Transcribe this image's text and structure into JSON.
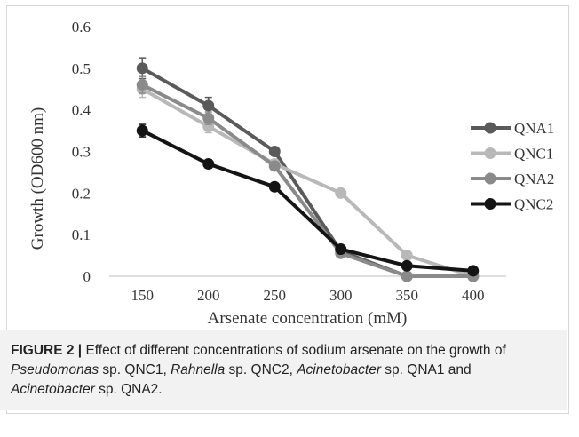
{
  "chart_data": {
    "type": "line",
    "xlabel": "Arsenate concentration (mM)",
    "ylabel": "Growth (OD600 nm)",
    "categories": [
      "150",
      "200",
      "250",
      "300",
      "350",
      "400"
    ],
    "ylim": [
      0,
      0.6
    ],
    "yticks": [
      "0",
      "0.1",
      "0.2",
      "0.3",
      "0.4",
      "0.5",
      "0.6"
    ],
    "grid": false,
    "legend_position": "right",
    "series": [
      {
        "name": "QNA1",
        "color": "#5a5a5a",
        "values": [
          0.5,
          0.41,
          0.3,
          0.06,
          0.0,
          0.0
        ],
        "errors": [
          0.025,
          0.02,
          0.01,
          0,
          0,
          0
        ]
      },
      {
        "name": "QNC1",
        "color": "#b8b8b8",
        "values": [
          0.45,
          0.36,
          0.27,
          0.2,
          0.05,
          0.0
        ],
        "errors": [
          0.02,
          0.015,
          0.01,
          0.005,
          0,
          0
        ]
      },
      {
        "name": "QNA2",
        "color": "#8a8a8a",
        "values": [
          0.46,
          0.38,
          0.265,
          0.055,
          0.0,
          0.0
        ],
        "errors": [
          0.02,
          0.015,
          0.01,
          0,
          0,
          0
        ]
      },
      {
        "name": "QNC2",
        "color": "#141414",
        "values": [
          0.35,
          0.27,
          0.215,
          0.065,
          0.025,
          0.013
        ],
        "errors": [
          0.015,
          0.01,
          0.005,
          0,
          0,
          0
        ]
      }
    ]
  },
  "caption": {
    "label": "FIGURE 2 |",
    "parts": [
      {
        "text": " Effect of different concentrations of sodium arsenate on the growth of ",
        "italic": false
      },
      {
        "text": "Pseudomonas",
        "italic": true
      },
      {
        "text": " sp. QNC1, ",
        "italic": false
      },
      {
        "text": "Rahnella",
        "italic": true
      },
      {
        "text": " sp. QNC2, ",
        "italic": false
      },
      {
        "text": "Acinetobacter",
        "italic": true
      },
      {
        "text": " sp. QNA1 and ",
        "italic": false
      },
      {
        "text": "Acinetobacter",
        "italic": true
      },
      {
        "text": " sp. QNA2.",
        "italic": false
      }
    ]
  }
}
